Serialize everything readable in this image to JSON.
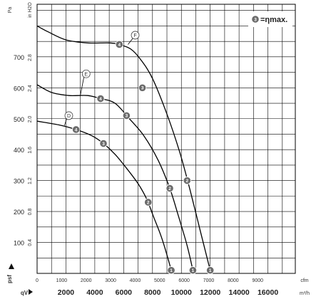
{
  "chart_data": {
    "type": "line",
    "title": "",
    "x_axis_primary": {
      "label": "qV",
      "unit": "m³/h",
      "range": [
        0,
        17900
      ],
      "ticks": [
        2000,
        4000,
        6000,
        8000,
        10000,
        12000,
        14000,
        16000
      ]
    },
    "x_axis_secondary": {
      "unit": "cfm",
      "ticks": [
        0,
        1000,
        2000,
        3000,
        4000,
        5000,
        6000,
        7000,
        8000,
        9000
      ]
    },
    "y_axis_primary": {
      "label": "psf",
      "unit": "Pa",
      "range": [
        0,
        870
      ],
      "ticks": [
        100,
        200,
        300,
        400,
        500,
        600,
        700
      ]
    },
    "y_axis_secondary": {
      "unit": "in H2O",
      "ticks": [
        "0.4",
        "0.8",
        "1.2",
        "1.6",
        "2.0",
        "2.4",
        "2.8"
      ]
    },
    "legend": {
      "marker": "3",
      "text": "=ηmax."
    },
    "series": [
      {
        "name": "D",
        "x": [
          0,
          1500,
          2700,
          3800,
          4600,
          5400,
          6200,
          7000,
          7600,
          8100,
          8600,
          9000,
          9300
        ],
        "values": [
          492,
          480,
          465,
          445,
          420,
          385,
          340,
          290,
          240,
          180,
          120,
          60,
          10
        ],
        "markers": [
          {
            "label": "4",
            "x": 2700,
            "y": 465
          },
          {
            "label": "3",
            "x": 4600,
            "y": 420
          },
          {
            "label": "2",
            "x": 7700,
            "y": 230
          },
          {
            "label": "1",
            "x": 9300,
            "y": 10
          }
        ]
      },
      {
        "name": "E",
        "x": [
          0,
          1000,
          2200,
          3500,
          4400,
          5400,
          6400,
          7400,
          8400,
          9200,
          9800,
          10400,
          10800
        ],
        "values": [
          610,
          585,
          575,
          575,
          565,
          550,
          500,
          445,
          365,
          275,
          185,
          90,
          10
        ],
        "markers": [
          {
            "label": "4",
            "x": 4400,
            "y": 565
          },
          {
            "label": "3",
            "x": 6200,
            "y": 510
          },
          {
            "label": "2",
            "x": 9200,
            "y": 275
          },
          {
            "label": "1",
            "x": 10800,
            "y": 10
          }
        ]
      },
      {
        "name": "F",
        "x": [
          0,
          800,
          2000,
          3500,
          5000,
          5700,
          6500,
          7200,
          8000,
          9000,
          9900,
          10600,
          11300,
          12000
        ],
        "values": [
          800,
          780,
          755,
          745,
          745,
          740,
          725,
          690,
          630,
          515,
          390,
          270,
          140,
          10
        ],
        "markers": [
          {
            "label": "4",
            "x": 5700,
            "y": 740
          },
          {
            "label": "3",
            "x": 7300,
            "y": 600
          },
          {
            "label": "2",
            "x": 10400,
            "y": 300
          },
          {
            "label": "1",
            "x": 12000,
            "y": 10
          }
        ]
      }
    ],
    "curve_tags": [
      {
        "name": "D",
        "x": 2200,
        "y": 510
      },
      {
        "name": "E",
        "x": 3400,
        "y": 645
      },
      {
        "name": "F",
        "x": 6800,
        "y": 770
      }
    ]
  }
}
